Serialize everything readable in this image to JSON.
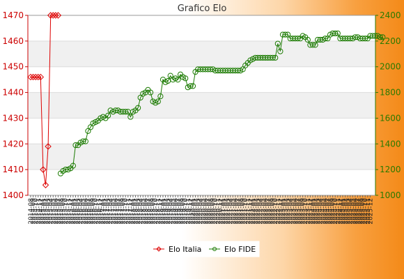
{
  "chart_data": {
    "type": "line",
    "title": "Grafico Elo",
    "xlabel": "",
    "ylabel_left": "",
    "ylabel_right": "",
    "grid": true,
    "legend_position": "bottom",
    "y_left": {
      "min": 1400,
      "max": 1470,
      "ticks": [
        1400,
        1410,
        1420,
        1430,
        1440,
        1450,
        1460,
        1470
      ]
    },
    "y_right": {
      "min": 1000,
      "max": 2400,
      "ticks": [
        1000,
        1200,
        1400,
        1600,
        1800,
        2000,
        2200,
        2400
      ]
    },
    "x_count": 138,
    "x_tick_labels": [
      "2014-08",
      "2014-09",
      "2014-10",
      "2014-11",
      "2014-12",
      "2015-01",
      "2015-02",
      "2015-03",
      "2015-04",
      "2015-05",
      "2015-06",
      "2015-07",
      "2015-08",
      "2015-09",
      "2015-10",
      "2015-11",
      "2015-12",
      "2016-01",
      "2016-02",
      "2016-03",
      "2016-04",
      "2016-05",
      "2016-06",
      "2016-07",
      "2016-08",
      "2016-09",
      "2016-10",
      "2016-11",
      "2016-12",
      "2017-01",
      "2017-02",
      "2017-03",
      "2017-04",
      "2017-05",
      "2017-06",
      "2017-07",
      "2017-08",
      "2017-09",
      "2017-10",
      "2017-11",
      "2017-12",
      "2018-01",
      "2018-02",
      "2018-03",
      "2018-04",
      "2018-05",
      "2018-06",
      "2018-07",
      "2018-08",
      "2018-09",
      "2018-10",
      "2018-11",
      "2018-12",
      "2019-01",
      "2019-02",
      "2019-03",
      "2019-04",
      "2019-05",
      "2019-06",
      "2019-07",
      "2019-08",
      "2019-09",
      "2019-10",
      "2019-11",
      "2019-12",
      "2020-01",
      "2020-02",
      "2020-03",
      "2020-04",
      "2020-05",
      "2020-06",
      "2020-07",
      "2020-08",
      "2020-09",
      "2020-10",
      "2020-11",
      "2020-12",
      "2021-01",
      "2021-02",
      "2021-03",
      "2021-04",
      "2021-05",
      "2021-06",
      "2021-07",
      "2021-08",
      "2021-09",
      "2021-10",
      "2021-11",
      "2021-12",
      "2022-01",
      "2022-02",
      "2022-03",
      "2022-04",
      "2022-05",
      "2022-06",
      "2022-07",
      "2022-08",
      "2022-09",
      "2022-10",
      "2022-11",
      "2022-12",
      "2023-01",
      "2023-02",
      "2023-03",
      "2023-04",
      "2023-05",
      "2023-06",
      "2023-07",
      "2023-08",
      "2023-09",
      "2023-10",
      "2023-11",
      "2023-12",
      "2024-01",
      "2024-02",
      "2024-03",
      "2024-04",
      "2024-05",
      "2024-06",
      "2024-07",
      "2024-08",
      "2024-09",
      "2024-10",
      "2024-11",
      "2024-12",
      "2025-01",
      "2025-02",
      "2025-03",
      "2025-04",
      "2025-05",
      "2025-06",
      "2025-07",
      "2025-08",
      "2025-09",
      "2025-10",
      "2025-11",
      "2025-12"
    ],
    "series": [
      {
        "name": "Elo Italia",
        "axis": "left",
        "color": "#dd0000",
        "marker": "diamond",
        "start_index": 0,
        "values": [
          1446,
          1446,
          1446,
          1446,
          1446,
          1410,
          1404,
          1419,
          1470,
          1470,
          1470,
          1470
        ]
      },
      {
        "name": "Elo FIDE",
        "axis": "right",
        "color": "#1a7a00",
        "marker": "circle",
        "start_index": 12,
        "values": [
          1170,
          1190,
          1200,
          1200,
          1210,
          1230,
          1390,
          1390,
          1410,
          1420,
          1420,
          1500,
          1530,
          1560,
          1570,
          1580,
          1600,
          1610,
          1600,
          1620,
          1660,
          1650,
          1660,
          1660,
          1650,
          1650,
          1650,
          1650,
          1610,
          1650,
          1660,
          1680,
          1760,
          1790,
          1800,
          1820,
          1800,
          1730,
          1720,
          1730,
          1770,
          1900,
          1880,
          1890,
          1930,
          1900,
          1910,
          1900,
          1940,
          1920,
          1910,
          1840,
          1850,
          1850,
          1960,
          1980,
          1980,
          1980,
          1980,
          1980,
          1980,
          1980,
          1970,
          1970,
          1970,
          1970,
          1970,
          1970,
          1970,
          1970,
          1970,
          1970,
          1970,
          1980,
          2010,
          2030,
          2050,
          2060,
          2070,
          2070,
          2070,
          2070,
          2070,
          2070,
          2070,
          2070,
          2070,
          2180,
          2120,
          2250,
          2250,
          2250,
          2220,
          2220,
          2220,
          2220,
          2220,
          2240,
          2230,
          2210,
          2170,
          2170,
          2170,
          2210,
          2210,
          2210,
          2220,
          2220,
          2250,
          2260,
          2260,
          2260,
          2220,
          2220,
          2220,
          2220,
          2220,
          2220,
          2230,
          2230,
          2220,
          2220,
          2220,
          2220,
          2240,
          2240,
          2240,
          2240,
          2230,
          2230
        ]
      }
    ]
  }
}
